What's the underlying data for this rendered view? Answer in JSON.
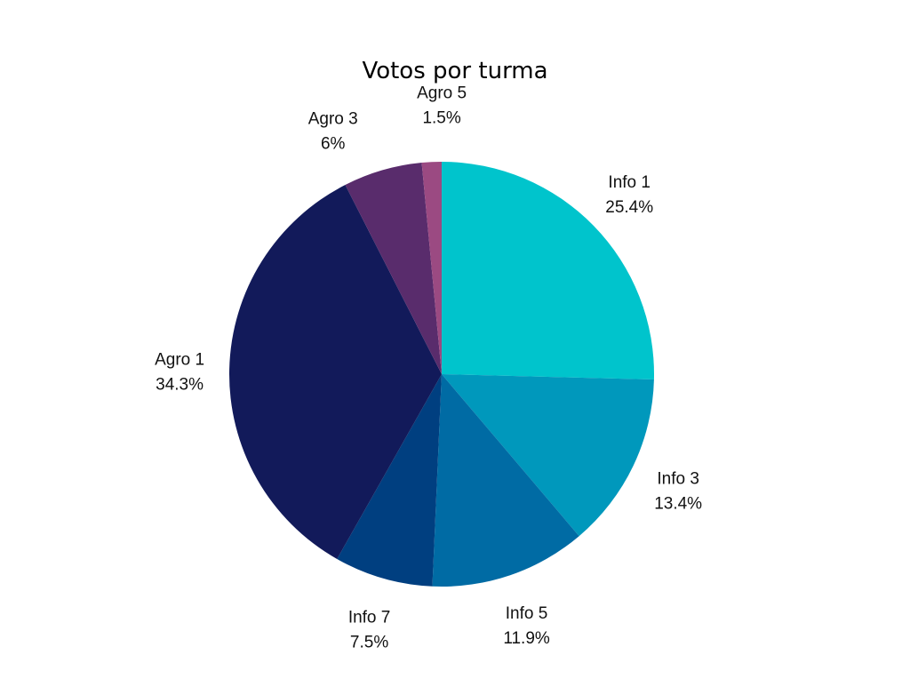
{
  "chart_data": {
    "type": "pie",
    "title": "Votos por turma",
    "categories": [
      "Info 1",
      "Info 3",
      "Info 5",
      "Info 7",
      "Agro 1",
      "Agro 3",
      "Agro 5"
    ],
    "values": [
      25.4,
      13.4,
      11.9,
      7.5,
      34.3,
      6,
      1.5
    ],
    "value_labels": [
      "25.4%",
      "13.4%",
      "11.9%",
      "7.5%",
      "34.3%",
      "6%",
      "1.5%"
    ],
    "colors": [
      "#00C4CC",
      "#0098BC",
      "#006BA4",
      "#003F80",
      "#121A5A",
      "#592C6C",
      "#9B4A82"
    ],
    "start_angle": "12 o'clock",
    "direction": "clockwise",
    "legend": "none"
  }
}
